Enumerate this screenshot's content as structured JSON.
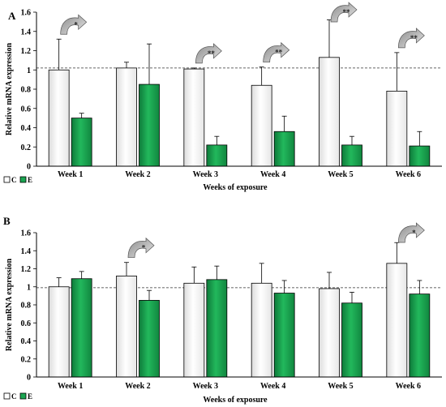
{
  "chart_data": [
    {
      "type": "bar",
      "panel_label": "A",
      "categories": [
        "Week 1",
        "Week 2",
        "Week 3",
        "Week 4",
        "Week 5",
        "Week 6"
      ],
      "series": [
        {
          "name": "C",
          "values": [
            1.0,
            1.02,
            1.01,
            0.84,
            1.13,
            0.78
          ],
          "errors": [
            0.32,
            0.06,
            0.01,
            0.19,
            0.39,
            0.4
          ],
          "color": "#ffffff"
        },
        {
          "name": "E",
          "values": [
            0.5,
            0.85,
            0.22,
            0.36,
            0.22,
            0.21
          ],
          "errors": [
            0.05,
            0.42,
            0.09,
            0.16,
            0.09,
            0.15
          ],
          "color": "#1aa551"
        }
      ],
      "significance": [
        {
          "category": "Week 1",
          "label": "*"
        },
        {
          "category": "Week 3",
          "label": "**"
        },
        {
          "category": "Week 4",
          "label": "**"
        },
        {
          "category": "Week 5",
          "label": "**"
        },
        {
          "category": "Week 6",
          "label": "**"
        }
      ],
      "reference_line": 1.02,
      "xlabel": "Weeks of exposure",
      "ylabel": "Relative mRNA expression",
      "ylim": [
        0,
        1.6
      ],
      "yticks": [
        "0",
        "0.2",
        "0.4",
        "0.6",
        "0.8",
        "1",
        "1.2",
        "1.4",
        "1.6"
      ],
      "legend_position": "bottom-left"
    },
    {
      "type": "bar",
      "panel_label": "B",
      "categories": [
        "Week 1",
        "Week 2",
        "Week 3",
        "Week 4",
        "Week 5",
        "Week 6"
      ],
      "series": [
        {
          "name": "C",
          "values": [
            1.0,
            1.12,
            1.04,
            1.04,
            0.98,
            1.26
          ],
          "errors": [
            0.1,
            0.15,
            0.18,
            0.22,
            0.18,
            0.23
          ],
          "color": "#ffffff"
        },
        {
          "name": "E",
          "values": [
            1.09,
            0.85,
            1.08,
            0.93,
            0.82,
            0.92
          ],
          "errors": [
            0.08,
            0.11,
            0.15,
            0.14,
            0.12,
            0.15
          ],
          "color": "#1aa551"
        }
      ],
      "significance": [
        {
          "category": "Week 2",
          "label": "*"
        },
        {
          "category": "Week 6",
          "label": "*"
        }
      ],
      "reference_line": 0.99,
      "xlabel": "Weeks of exposure",
      "ylabel": "Relative mRNA expression",
      "ylim": [
        0,
        1.6
      ],
      "yticks": [
        "0",
        "0.2",
        "0.4",
        "0.6",
        "0.8",
        "1",
        "1.2",
        "1.4",
        "1.6"
      ],
      "legend_position": "bottom-left"
    }
  ]
}
